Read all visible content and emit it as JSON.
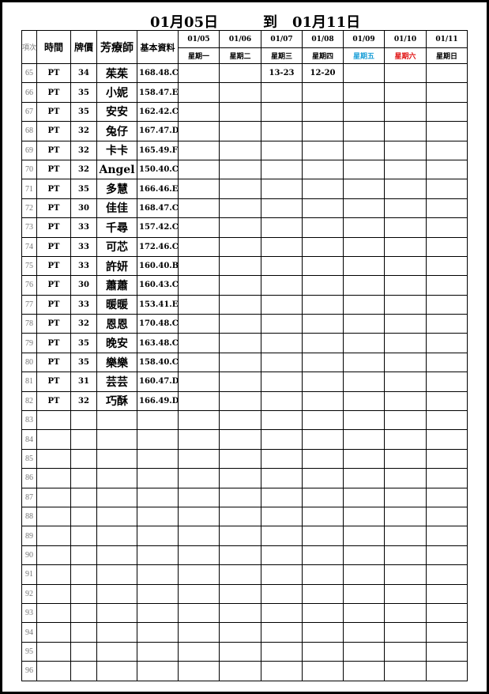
{
  "title": {
    "start": "01月05日",
    "to": "到",
    "end": "01月11日"
  },
  "headers": {
    "index": "項次",
    "time": "時間",
    "price": "牌價",
    "therapist": "芳療師",
    "info": "基本資料"
  },
  "days": [
    {
      "date": "01/05",
      "weekday": "星期一",
      "color": "#000000"
    },
    {
      "date": "01/06",
      "weekday": "星期二",
      "color": "#000000"
    },
    {
      "date": "01/07",
      "weekday": "星期三",
      "color": "#000000"
    },
    {
      "date": "01/08",
      "weekday": "星期四",
      "color": "#000000"
    },
    {
      "date": "01/09",
      "weekday": "星期五",
      "color": "#1ea0d8"
    },
    {
      "date": "01/10",
      "weekday": "星期六",
      "color": "#e01010"
    },
    {
      "date": "01/11",
      "weekday": "星期日",
      "color": "#000000"
    }
  ],
  "rows": [
    {
      "no": "65",
      "time": "PT",
      "price": "34",
      "name": "茱茱",
      "info": "168.48.C",
      "slots": [
        "",
        "",
        "13-23",
        "12-20",
        "",
        "",
        ""
      ]
    },
    {
      "no": "66",
      "time": "PT",
      "price": "35",
      "name": "小妮",
      "info": "158.47.E",
      "slots": [
        "",
        "",
        "",
        "",
        "",
        "",
        ""
      ]
    },
    {
      "no": "67",
      "time": "PT",
      "price": "35",
      "name": "安安",
      "info": "162.42.C",
      "slots": [
        "",
        "",
        "",
        "",
        "",
        "",
        ""
      ]
    },
    {
      "no": "68",
      "time": "PT",
      "price": "32",
      "name": "兔仔",
      "info": "167.47.D",
      "slots": [
        "",
        "",
        "",
        "",
        "",
        "",
        ""
      ]
    },
    {
      "no": "69",
      "time": "PT",
      "price": "32",
      "name": "卡卡",
      "info": "165.49.F",
      "slots": [
        "",
        "",
        "",
        "",
        "",
        "",
        ""
      ]
    },
    {
      "no": "70",
      "time": "PT",
      "price": "32",
      "name": "Angel",
      "info": "150.40.C",
      "slots": [
        "",
        "",
        "",
        "",
        "",
        "",
        ""
      ]
    },
    {
      "no": "71",
      "time": "PT",
      "price": "35",
      "name": "多慧",
      "info": "166.46.E",
      "slots": [
        "",
        "",
        "",
        "",
        "",
        "",
        ""
      ]
    },
    {
      "no": "72",
      "time": "PT",
      "price": "30",
      "name": "佳佳",
      "info": "168.47.C",
      "slots": [
        "",
        "",
        "",
        "",
        "",
        "",
        ""
      ]
    },
    {
      "no": "73",
      "time": "PT",
      "price": "33",
      "name": "千尋",
      "info": "157.42.C",
      "slots": [
        "",
        "",
        "",
        "",
        "",
        "",
        ""
      ]
    },
    {
      "no": "74",
      "time": "PT",
      "price": "33",
      "name": "可芯",
      "info": "172.46.C",
      "slots": [
        "",
        "",
        "",
        "",
        "",
        "",
        ""
      ]
    },
    {
      "no": "75",
      "time": "PT",
      "price": "33",
      "name": "許妍",
      "info": "160.40.B",
      "slots": [
        "",
        "",
        "",
        "",
        "",
        "",
        ""
      ]
    },
    {
      "no": "76",
      "time": "PT",
      "price": "30",
      "name": "蕭蕭",
      "info": "160.43.C",
      "slots": [
        "",
        "",
        "",
        "",
        "",
        "",
        ""
      ]
    },
    {
      "no": "77",
      "time": "PT",
      "price": "33",
      "name": "暖暖",
      "info": "153.41.E",
      "slots": [
        "",
        "",
        "",
        "",
        "",
        "",
        ""
      ]
    },
    {
      "no": "78",
      "time": "PT",
      "price": "32",
      "name": "恩恩",
      "info": "170.48.C",
      "slots": [
        "",
        "",
        "",
        "",
        "",
        "",
        ""
      ]
    },
    {
      "no": "79",
      "time": "PT",
      "price": "35",
      "name": "晚安",
      "info": "163.48.C",
      "slots": [
        "",
        "",
        "",
        "",
        "",
        "",
        ""
      ]
    },
    {
      "no": "80",
      "time": "PT",
      "price": "35",
      "name": "樂樂",
      "info": "158.40.C",
      "slots": [
        "",
        "",
        "",
        "",
        "",
        "",
        ""
      ]
    },
    {
      "no": "81",
      "time": "PT",
      "price": "31",
      "name": "芸芸",
      "info": "160.47.D",
      "slots": [
        "",
        "",
        "",
        "",
        "",
        "",
        ""
      ]
    },
    {
      "no": "82",
      "time": "PT",
      "price": "32",
      "name": "巧酥",
      "info": "166.49.D",
      "slots": [
        "",
        "",
        "",
        "",
        "",
        "",
        ""
      ]
    },
    {
      "no": "83"
    },
    {
      "no": "84"
    },
    {
      "no": "85"
    },
    {
      "no": "86"
    },
    {
      "no": "87"
    },
    {
      "no": "88"
    },
    {
      "no": "89"
    },
    {
      "no": "90"
    },
    {
      "no": "91"
    },
    {
      "no": "92"
    },
    {
      "no": "93"
    },
    {
      "no": "94"
    },
    {
      "no": "95"
    },
    {
      "no": "96"
    }
  ]
}
